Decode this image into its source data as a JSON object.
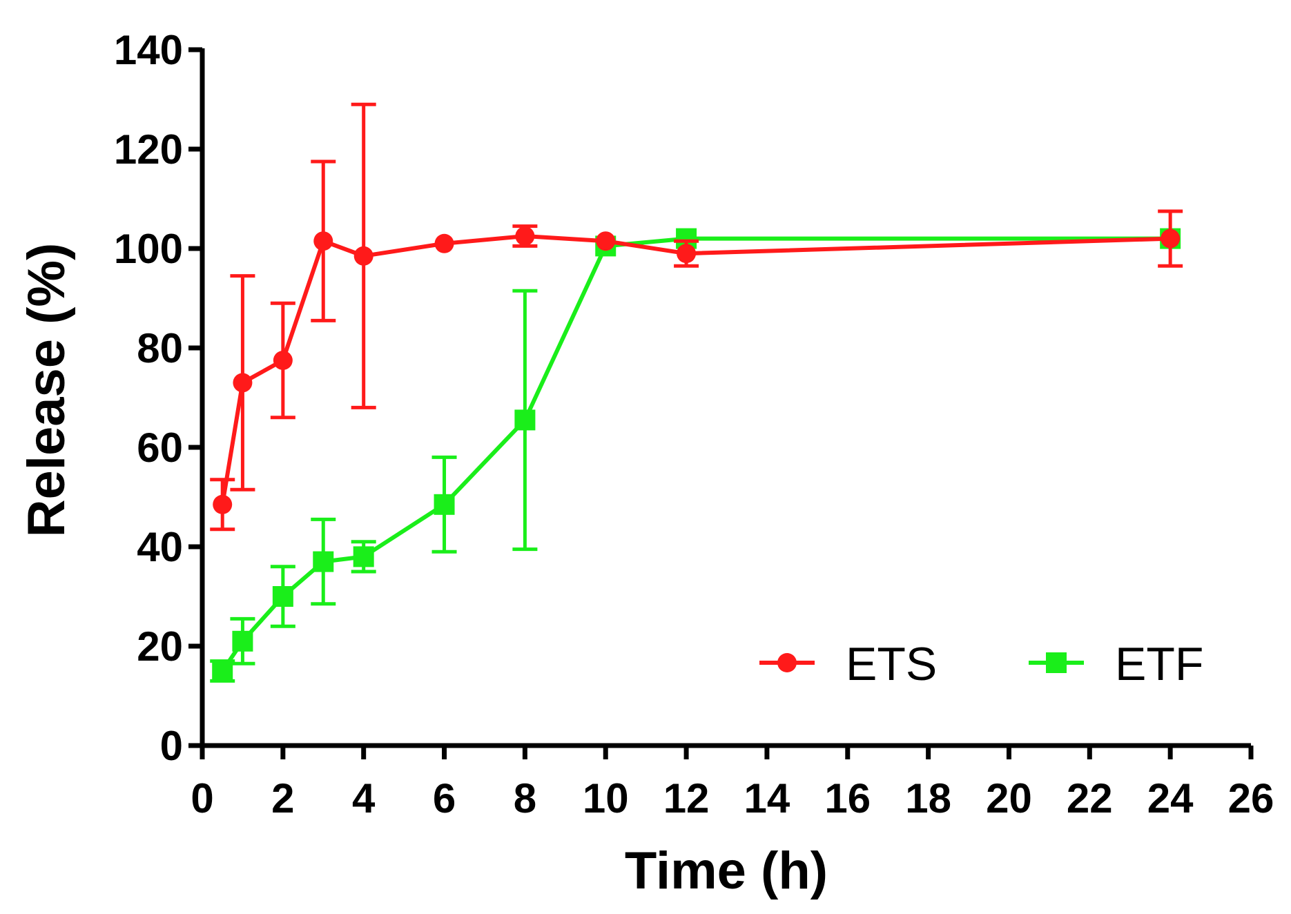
{
  "chart_data": {
    "type": "line",
    "title": "",
    "xlabel": "Time (h)",
    "ylabel": "Release (%)",
    "xlim": [
      0,
      26
    ],
    "ylim": [
      0,
      140
    ],
    "xticks": [
      0,
      2,
      4,
      6,
      8,
      10,
      12,
      14,
      16,
      18,
      20,
      22,
      24,
      26
    ],
    "yticks": [
      0,
      20,
      40,
      60,
      80,
      100,
      120,
      140
    ],
    "legend_position": "bottom-right",
    "series": [
      {
        "name": "ETS",
        "color": "#ff1a1a",
        "marker": "circle",
        "x": [
          0.5,
          1,
          2,
          3,
          4,
          6,
          8,
          10,
          12,
          24
        ],
        "y": [
          48.5,
          73,
          77.5,
          101.5,
          98.5,
          101,
          102.5,
          101.5,
          99,
          102
        ],
        "err": [
          5,
          21.5,
          11.5,
          16,
          30.5,
          0,
          2,
          0,
          2.5,
          5.5
        ]
      },
      {
        "name": "ETF",
        "color": "#1aee1a",
        "marker": "square",
        "x": [
          0.5,
          1,
          2,
          3,
          4,
          6,
          8,
          10,
          12,
          24
        ],
        "y": [
          15,
          21,
          30,
          37,
          38,
          48.5,
          65.5,
          100.5,
          102,
          102
        ],
        "err": [
          2,
          4.5,
          6,
          8.5,
          3,
          9.5,
          26,
          0,
          0,
          0
        ]
      }
    ]
  }
}
